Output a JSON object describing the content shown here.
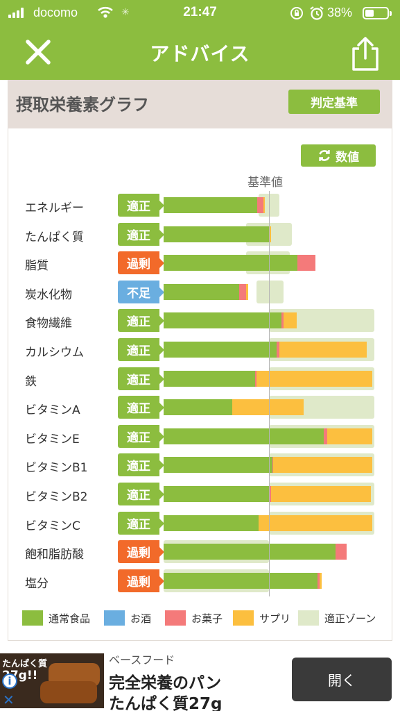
{
  "status_bar": {
    "carrier": "docomo",
    "time": "21:47",
    "battery": "38%"
  },
  "nav": {
    "title": "アドバイス",
    "close_icon": "close-icon",
    "share_icon": "share-icon"
  },
  "card": {
    "title": "摂取栄養素グラフ",
    "criteria_button": "判定基準",
    "value_button": "数値",
    "baseline_label": "基準値"
  },
  "colors": {
    "header": "#8cbd3f",
    "normal": "#8cbd3f",
    "alcohol": "#6aaee0",
    "snack": "#f47a7a",
    "supplement": "#fcbf3f",
    "zone": "#dfe9c9",
    "status_ok": "#8cbd3f",
    "status_excess": "#f26a2a",
    "status_deficit": "#6aaee0"
  },
  "nutrients": [
    {
      "name": "エネルギー",
      "status": "適正",
      "type": "ok",
      "zone": [
        0.9,
        1.1
      ],
      "normal": 0.89,
      "snack": 0.06,
      "supplement": 0.01
    },
    {
      "name": "たんぱく質",
      "status": "適正",
      "type": "ok",
      "zone": [
        0.78,
        1.22
      ],
      "normal": 1.0,
      "snack": 0.0,
      "supplement": 0.02
    },
    {
      "name": "脂質",
      "status": "過剰",
      "type": "excess",
      "zone": [
        0.78,
        1.2
      ],
      "normal": 1.27,
      "snack": 0.17,
      "supplement": 0.0
    },
    {
      "name": "炭水化物",
      "status": "不足",
      "type": "deficit",
      "zone": [
        0.88,
        1.14
      ],
      "normal": 0.72,
      "snack": 0.06,
      "supplement": 0.02
    },
    {
      "name": "食物繊維",
      "status": "適正",
      "type": "ok",
      "zone": [
        1.0,
        2.0
      ],
      "normal": 1.12,
      "snack": 0.02,
      "supplement": 0.12
    },
    {
      "name": "カルシウム",
      "status": "適正",
      "type": "ok",
      "zone": [
        1.0,
        2.0
      ],
      "normal": 1.07,
      "snack": 0.03,
      "supplement": 0.83
    },
    {
      "name": "鉄",
      "status": "適正",
      "type": "ok",
      "zone": [
        1.0,
        2.0
      ],
      "normal": 0.87,
      "snack": 0.01,
      "supplement": 1.1
    },
    {
      "name": "ビタミンA",
      "status": "適正",
      "type": "ok",
      "zone": [
        1.0,
        2.0
      ],
      "normal": 0.65,
      "snack": 0.0,
      "supplement": 0.68
    },
    {
      "name": "ビタミンE",
      "status": "適正",
      "type": "ok",
      "zone": [
        1.0,
        2.0
      ],
      "normal": 1.52,
      "snack": 0.03,
      "supplement": 0.43
    },
    {
      "name": "ビタミンB1",
      "status": "適正",
      "type": "ok",
      "zone": [
        1.0,
        2.0
      ],
      "normal": 1.03,
      "snack": 0.01,
      "supplement": 0.94
    },
    {
      "name": "ビタミンB2",
      "status": "適正",
      "type": "ok",
      "zone": [
        1.0,
        2.0
      ],
      "normal": 1.0,
      "snack": 0.02,
      "supplement": 0.95
    },
    {
      "name": "ビタミンC",
      "status": "適正",
      "type": "ok",
      "zone": [
        1.0,
        2.0
      ],
      "normal": 0.9,
      "snack": 0.0,
      "supplement": 1.08
    },
    {
      "name": "飽和脂肪酸",
      "status": "過剰",
      "type": "excess",
      "zone": [
        0.0,
        1.0
      ],
      "normal": 1.63,
      "snack": 0.11,
      "supplement": 0.0
    },
    {
      "name": "塩分",
      "status": "過剰",
      "type": "excess",
      "zone": [
        0.0,
        1.0
      ],
      "normal": 1.46,
      "snack": 0.02,
      "supplement": 0.02
    }
  ],
  "legend": [
    {
      "label": "通常食品",
      "color": "#8cbd3f"
    },
    {
      "label": "お酒",
      "color": "#6aaee0"
    },
    {
      "label": "お菓子",
      "color": "#f47a7a"
    },
    {
      "label": "サプリ",
      "color": "#fcbf3f"
    },
    {
      "label": "適正ゾーン",
      "color": "#dfe9c9"
    }
  ],
  "ad": {
    "image_text_1": "たんぱく質",
    "image_text_2": "27g!!",
    "brand": "ベースフード",
    "line1": "完全栄養のパン",
    "line2": "たんぱく質27g",
    "button": "開く",
    "info_icon": "info-icon",
    "close_icon": "close-icon"
  }
}
